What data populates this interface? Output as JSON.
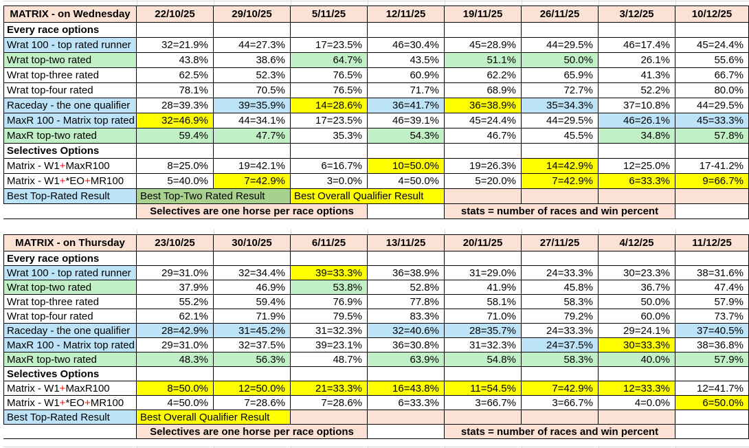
{
  "colors": {
    "header_peach": "#fbe2d5",
    "blue": "#bce3f7",
    "green": "#c2f0c6",
    "green_band": "#a9d18e",
    "yellow": "#ffff00",
    "red_text": "#ff0000",
    "border": "#000000",
    "faint_grid": "#d9d9d9"
  },
  "tables": [
    {
      "title": "MATRIX - on Wednesday",
      "dates": [
        "22/10/25",
        "29/10/25",
        "5/11/25",
        "12/11/25",
        "19/11/25",
        "26/11/25",
        "3/12/25",
        "10/12/25"
      ],
      "rows": [
        {
          "t": "section",
          "label": "Every race options"
        },
        {
          "t": "data",
          "label": "Wrat 100 - top rated runner",
          "lf": "b",
          "cells": [
            {
              "v": "32=21.9%",
              "f": "w"
            },
            {
              "v": "44=27.3%",
              "f": "w"
            },
            {
              "v": "17=23.5%",
              "f": "w"
            },
            {
              "v": "46=30.4%",
              "f": "w"
            },
            {
              "v": "45=28.9%",
              "f": "w"
            },
            {
              "v": "44=29.5%",
              "f": "w"
            },
            {
              "v": "46=17.4%",
              "f": "w"
            },
            {
              "v": "45=24.4%",
              "f": "w"
            }
          ]
        },
        {
          "t": "data",
          "label": "Wrat top-two rated",
          "lf": "g",
          "cells": [
            {
              "v": "43.8%",
              "f": "w"
            },
            {
              "v": "38.6%",
              "f": "w"
            },
            {
              "v": "64.7%",
              "f": "g"
            },
            {
              "v": "43.5%",
              "f": "w"
            },
            {
              "v": "51.1%",
              "f": "g"
            },
            {
              "v": "50.0%",
              "f": "g"
            },
            {
              "v": "26.1%",
              "f": "w"
            },
            {
              "v": "55.6%",
              "f": "w"
            }
          ]
        },
        {
          "t": "data",
          "label": "Wrat top-three rated",
          "lf": "w",
          "cells": [
            {
              "v": "62.5%",
              "f": "w"
            },
            {
              "v": "52.3%",
              "f": "w"
            },
            {
              "v": "76.5%",
              "f": "w"
            },
            {
              "v": "60.9%",
              "f": "w"
            },
            {
              "v": "62.2%",
              "f": "w"
            },
            {
              "v": "65.9%",
              "f": "w"
            },
            {
              "v": "41.3%",
              "f": "w"
            },
            {
              "v": "66.7%",
              "f": "w"
            }
          ]
        },
        {
          "t": "data",
          "label": "Wrat top-four rated",
          "lf": "w",
          "cells": [
            {
              "v": "78.1%",
              "f": "w"
            },
            {
              "v": "70.5%",
              "f": "w"
            },
            {
              "v": "76.5%",
              "f": "w"
            },
            {
              "v": "71.7%",
              "f": "w"
            },
            {
              "v": "68.9%",
              "f": "w"
            },
            {
              "v": "72.7%",
              "f": "w"
            },
            {
              "v": "52.2%",
              "f": "w"
            },
            {
              "v": "80.0%",
              "f": "w"
            }
          ]
        },
        {
          "t": "data",
          "label": "Raceday - the one qualifier",
          "lf": "b",
          "cells": [
            {
              "v": "28=39.3%",
              "f": "w"
            },
            {
              "v": "39=35.9%",
              "f": "b"
            },
            {
              "v": "14=28.6%",
              "f": "y"
            },
            {
              "v": "36=41.7%",
              "f": "b"
            },
            {
              "v": "36=38.9%",
              "f": "y"
            },
            {
              "v": "35=34.3%",
              "f": "b"
            },
            {
              "v": "37=10.8%",
              "f": "w"
            },
            {
              "v": "44=29.5%",
              "f": "w"
            }
          ]
        },
        {
          "t": "data",
          "label": "MaxR 100 - Matrix top rated",
          "lf": "b",
          "cells": [
            {
              "v": "32=46.9%",
              "f": "y"
            },
            {
              "v": "44=34.1%",
              "f": "w"
            },
            {
              "v": "17=23.5%",
              "f": "w"
            },
            {
              "v": "46=39.1%",
              "f": "w"
            },
            {
              "v": "45=24.4%",
              "f": "w"
            },
            {
              "v": "44=29.5%",
              "f": "w"
            },
            {
              "v": "46=26.1%",
              "f": "b"
            },
            {
              "v": "45=33.3%",
              "f": "b"
            }
          ]
        },
        {
          "t": "data",
          "label": "MaxR top-two rated",
          "lf": "g",
          "cells": [
            {
              "v": "59.4%",
              "f": "g"
            },
            {
              "v": "47.7%",
              "f": "g"
            },
            {
              "v": "35.3%",
              "f": "w"
            },
            {
              "v": "54.3%",
              "f": "g"
            },
            {
              "v": "46.7%",
              "f": "w"
            },
            {
              "v": "45.5%",
              "f": "w"
            },
            {
              "v": "34.8%",
              "f": "g"
            },
            {
              "v": "57.8%",
              "f": "g"
            }
          ]
        },
        {
          "t": "section",
          "label": "Selectives Options"
        },
        {
          "t": "data",
          "label_parts": [
            "Matrix - W1",
            "+",
            "MaxR100"
          ],
          "lf": "w",
          "cells": [
            {
              "v": "8=25.0%",
              "f": "w"
            },
            {
              "v": "19=42.1%",
              "f": "w"
            },
            {
              "v": "6=16.7%",
              "f": "w"
            },
            {
              "v": "10=50.0%",
              "f": "y"
            },
            {
              "v": "19=26.3%",
              "f": "w"
            },
            {
              "v": "14=42.9%",
              "f": "y"
            },
            {
              "v": "12=25.0%",
              "f": "w"
            },
            {
              "v": "17-41.2%",
              "f": "w"
            }
          ]
        },
        {
          "t": "data",
          "label_parts": [
            "Matrix - W1",
            "+",
            "*EO",
            "+",
            "MR100"
          ],
          "lf": "w",
          "cells": [
            {
              "v": "5=40.0%",
              "f": "w"
            },
            {
              "v": "7=42.9%",
              "f": "y"
            },
            {
              "v": "3=0.0%",
              "f": "w"
            },
            {
              "v": "4=50.0%",
              "f": "w"
            },
            {
              "v": "5=20.0%",
              "f": "w"
            },
            {
              "v": "7=42.9%",
              "f": "y"
            },
            {
              "v": "6=33.3%",
              "f": "y"
            },
            {
              "v": "9=66.7%",
              "f": "y"
            }
          ]
        }
      ],
      "best_row": {
        "label": "Best Top-Rated Result",
        "bands": [
          {
            "text": "Best Top-Two Rated Result",
            "f": "gb",
            "span": 2
          },
          {
            "text": "Best Overall Qualifier Result",
            "f": "y",
            "span": 2
          },
          {
            "text": "",
            "f": "p",
            "span": 1
          },
          {
            "text": "",
            "f": "p",
            "span": 1
          },
          {
            "text": "",
            "f": "p",
            "span": 1
          },
          {
            "text": "",
            "f": "p",
            "span": 1
          }
        ]
      },
      "stats_row": {
        "bands": [
          {
            "text": "Selectives are one horse per race options",
            "f": "p",
            "span": 3
          },
          {
            "text": "",
            "f": "wb",
            "span": 1
          },
          {
            "text": "stats = number of races and win percent",
            "f": "p",
            "span": 3
          },
          {
            "text": "",
            "f": "ghost",
            "span": 1
          }
        ]
      }
    },
    {
      "title": "MATRIX - on Thursday",
      "dates": [
        "23/10/25",
        "30/10/25",
        "6/11/25",
        "13/11/25",
        "20/11/25",
        "27/11/25",
        "4/12/25",
        "11/12/25"
      ],
      "rows": [
        {
          "t": "section",
          "label": "Every race options"
        },
        {
          "t": "data",
          "label": "Wrat 100 - top rated runner",
          "lf": "b",
          "cells": [
            {
              "v": "29=31.0%",
              "f": "w"
            },
            {
              "v": "32=34.4%",
              "f": "w"
            },
            {
              "v": "39=33.3%",
              "f": "y"
            },
            {
              "v": "36=38.9%",
              "f": "w"
            },
            {
              "v": "31=29.0%",
              "f": "w"
            },
            {
              "v": "24=33.3%",
              "f": "w"
            },
            {
              "v": "30=23.3%",
              "f": "w"
            },
            {
              "v": "38=31.6%",
              "f": "w"
            }
          ]
        },
        {
          "t": "data",
          "label": "Wrat top-two rated",
          "lf": "g",
          "cells": [
            {
              "v": "37.9%",
              "f": "w"
            },
            {
              "v": "46.9%",
              "f": "w"
            },
            {
              "v": "53.8%",
              "f": "g"
            },
            {
              "v": "52.8%",
              "f": "w"
            },
            {
              "v": "41.9%",
              "f": "w"
            },
            {
              "v": "45.8%",
              "f": "w"
            },
            {
              "v": "36.7%",
              "f": "w"
            },
            {
              "v": "47.4%",
              "f": "w"
            }
          ]
        },
        {
          "t": "data",
          "label": "Wrat top-three rated",
          "lf": "w",
          "cells": [
            {
              "v": "55.2%",
              "f": "w"
            },
            {
              "v": "59.4%",
              "f": "w"
            },
            {
              "v": "76.9%",
              "f": "w"
            },
            {
              "v": "77.8%",
              "f": "w"
            },
            {
              "v": "58.1%",
              "f": "w"
            },
            {
              "v": "58.3%",
              "f": "w"
            },
            {
              "v": "50.0%",
              "f": "w"
            },
            {
              "v": "57.9%",
              "f": "w"
            }
          ]
        },
        {
          "t": "data",
          "label": "Wrat top-four rated",
          "lf": "w",
          "cells": [
            {
              "v": "62.1%",
              "f": "w"
            },
            {
              "v": "71.9%",
              "f": "w"
            },
            {
              "v": "79.5%",
              "f": "w"
            },
            {
              "v": "83.3%",
              "f": "w"
            },
            {
              "v": "71.0%",
              "f": "w"
            },
            {
              "v": "79.2%",
              "f": "w"
            },
            {
              "v": "60.0%",
              "f": "w"
            },
            {
              "v": "73.7%",
              "f": "w"
            }
          ]
        },
        {
          "t": "data",
          "label": "Raceday - the one qualifier",
          "lf": "b",
          "cells": [
            {
              "v": "28=42.9%",
              "f": "b"
            },
            {
              "v": "31=45.2%",
              "f": "b"
            },
            {
              "v": "31=32.3%",
              "f": "w"
            },
            {
              "v": "32=40.6%",
              "f": "b"
            },
            {
              "v": "28=35.7%",
              "f": "b"
            },
            {
              "v": "24=33.3%",
              "f": "w"
            },
            {
              "v": "29=24.1%",
              "f": "w"
            },
            {
              "v": "37=40.5%",
              "f": "b"
            }
          ]
        },
        {
          "t": "data",
          "label": "MaxR 100 - Matrix top rated",
          "lf": "b",
          "cells": [
            {
              "v": "29=31.0%",
              "f": "w"
            },
            {
              "v": "32=37.5%",
              "f": "w"
            },
            {
              "v": "39=23.1%",
              "f": "w"
            },
            {
              "v": "36=30.8%",
              "f": "w"
            },
            {
              "v": "31=32.3%",
              "f": "w"
            },
            {
              "v": "24=37.5%",
              "f": "b"
            },
            {
              "v": "30=33.3%",
              "f": "y"
            },
            {
              "v": "38=36.8%",
              "f": "w"
            }
          ]
        },
        {
          "t": "data",
          "label": "MaxR top-two rated",
          "lf": "g",
          "cells": [
            {
              "v": "48.3%",
              "f": "g"
            },
            {
              "v": "56.3%",
              "f": "g"
            },
            {
              "v": "48.7%",
              "f": "w"
            },
            {
              "v": "63.9%",
              "f": "g"
            },
            {
              "v": "54.8%",
              "f": "g"
            },
            {
              "v": "58.3%",
              "f": "g"
            },
            {
              "v": "40.0%",
              "f": "g"
            },
            {
              "v": "57.9%",
              "f": "g"
            }
          ]
        },
        {
          "t": "section",
          "label": "Selectives Options"
        },
        {
          "t": "data",
          "label_parts": [
            "Matrix - W1",
            "+",
            "MaxR100"
          ],
          "lf": "w",
          "cells": [
            {
              "v": "8=50.0%",
              "f": "y"
            },
            {
              "v": "12=50.0%",
              "f": "y"
            },
            {
              "v": "21=33.3%",
              "f": "y"
            },
            {
              "v": "16=43.8%",
              "f": "y"
            },
            {
              "v": "11=54.5%",
              "f": "y"
            },
            {
              "v": "7=42.9%",
              "f": "y"
            },
            {
              "v": "12=33.3%",
              "f": "y"
            },
            {
              "v": "12=41.7%",
              "f": "w"
            }
          ]
        },
        {
          "t": "data",
          "label_parts": [
            "Matrix - W1",
            "+",
            "*EO",
            "+",
            "MR100"
          ],
          "lf": "w",
          "cells": [
            {
              "v": "4=50.0%",
              "f": "w"
            },
            {
              "v": "7=28.6%",
              "f": "w"
            },
            {
              "v": "7=28.6%",
              "f": "w"
            },
            {
              "v": "6=33.3%",
              "f": "w"
            },
            {
              "v": "3=66.7%",
              "f": "w"
            },
            {
              "v": "3=66.7%",
              "f": "w"
            },
            {
              "v": "4=0.0%",
              "f": "w"
            },
            {
              "v": "6=50.0%",
              "f": "y"
            }
          ]
        }
      ],
      "best_row": {
        "label": "Best Top-Rated Result",
        "bands": [
          {
            "text": "Best Overall Qualifier Result",
            "f": "y",
            "span": 2
          },
          {
            "text": "",
            "f": "p",
            "span": 1
          },
          {
            "text": "",
            "f": "p",
            "span": 1
          },
          {
            "text": "",
            "f": "p",
            "span": 1
          },
          {
            "text": "",
            "f": "p",
            "span": 1
          },
          {
            "text": "",
            "f": "p",
            "span": 1
          },
          {
            "text": "",
            "f": "wb",
            "span": 1
          }
        ]
      },
      "stats_row": {
        "bands": [
          {
            "text": "Selectives are one horse per race options",
            "f": "p",
            "span": 3
          },
          {
            "text": "",
            "f": "wb",
            "span": 1
          },
          {
            "text": "stats = number of races and win percent",
            "f": "p",
            "span": 3
          },
          {
            "text": "",
            "f": "ghost",
            "span": 1
          }
        ]
      }
    }
  ]
}
